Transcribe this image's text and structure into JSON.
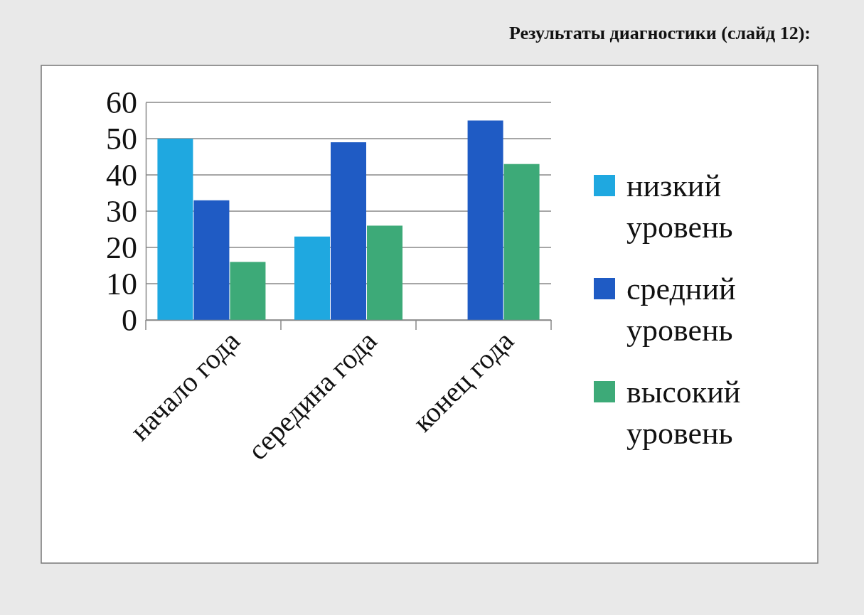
{
  "chart_data": {
    "type": "bar",
    "title": "Результаты диагностики (слайд 12):",
    "categories": [
      "начало года",
      "середина года",
      "конец года"
    ],
    "series": [
      {
        "name": "низкий уровень",
        "color": "#1fa8e0",
        "values": [
          50,
          23,
          0
        ]
      },
      {
        "name": "средний уровень",
        "color": "#1f5bc4",
        "values": [
          33,
          49,
          55
        ]
      },
      {
        "name": "высокий уровень",
        "color": "#3daa78",
        "values": [
          16,
          26,
          43
        ]
      }
    ],
    "ylim": [
      0,
      60
    ],
    "yticks": [
      0,
      10,
      20,
      30,
      40,
      50,
      60
    ],
    "grid": "y",
    "legend": "right"
  }
}
